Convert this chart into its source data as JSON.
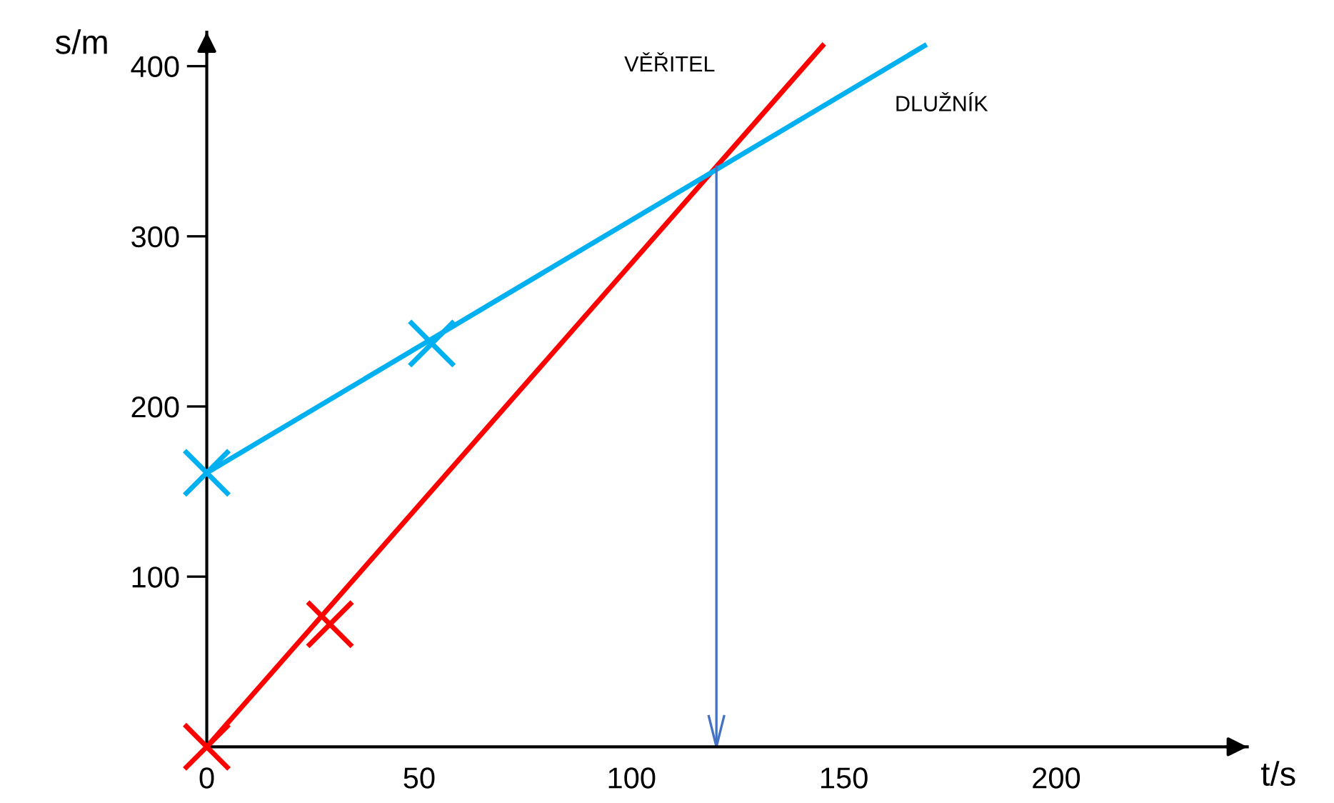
{
  "chart_data": {
    "type": "line",
    "xlabel": "t/s",
    "ylabel": "s/m",
    "series": [
      {
        "name": "VĚŘITEL",
        "color": "#ff0000",
        "x": [
          0,
          145
        ],
        "values": [
          0,
          412
        ]
      },
      {
        "name": "DLUŽNÍK",
        "color": "#00b0f0",
        "x": [
          0,
          169
        ],
        "values": [
          161,
          412
        ]
      },
      {
        "type": "scatter",
        "marker": "cross",
        "color": "#ff0000",
        "x": [
          0,
          29
        ],
        "values": [
          0,
          72
        ]
      },
      {
        "type": "scatter",
        "marker": "cross",
        "color": "#00b0f0",
        "x": [
          0,
          53
        ],
        "values": [
          161,
          237
        ]
      }
    ],
    "xlim": [
      0,
      245
    ],
    "ylim": [
      0,
      420
    ],
    "xticks": [
      0,
      50,
      100,
      150,
      200
    ],
    "yticks": [
      100,
      200,
      300,
      400
    ],
    "ref_lines": [
      {
        "axis": "x",
        "value": 120,
        "color": "#4472c4",
        "line_style": "solid"
      }
    ],
    "grid": false,
    "legend": false,
    "line_style": "solid"
  }
}
